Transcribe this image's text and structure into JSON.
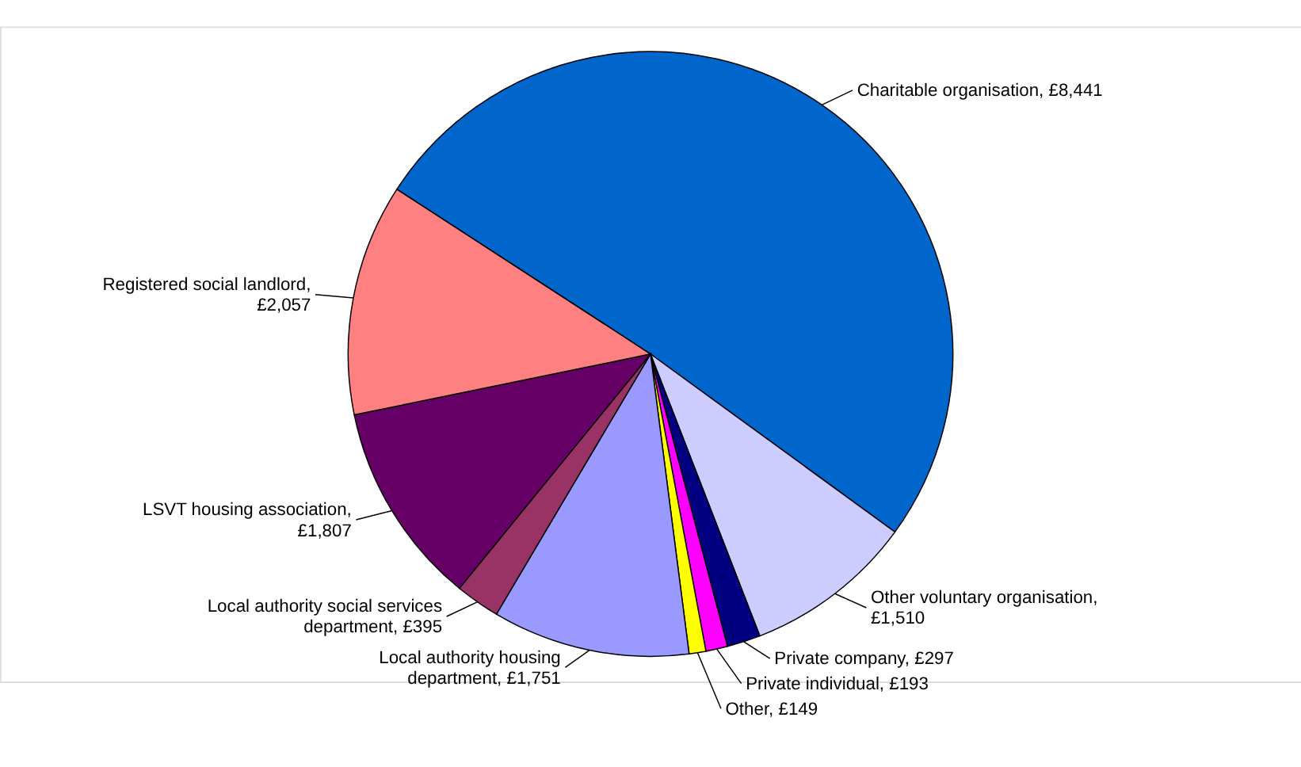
{
  "chart_data": {
    "type": "pie",
    "categories": [
      "Charitable organisation, £8,441",
      "Other voluntary organisation, £1,510",
      "Private company, £297",
      "Private individual, £193",
      "Other, £149",
      "Local authority housing department, £1,751",
      "Local authority social services department, £395",
      "LSVT housing association, £1,807",
      "Registered social landlord, £2,057"
    ],
    "values": [
      8441,
      1510,
      297,
      193,
      149,
      1751,
      395,
      1807,
      2057
    ],
    "colors": [
      "#0066cc",
      "#ccccff",
      "#000080",
      "#ff00ff",
      "#ffff00",
      "#9999ff",
      "#993366",
      "#660066",
      "#ff8080"
    ]
  }
}
